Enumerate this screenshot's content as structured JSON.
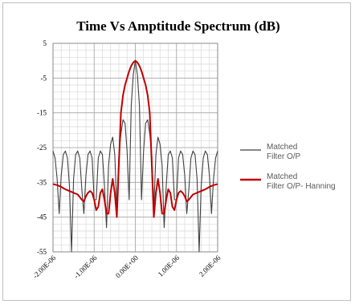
{
  "chart_data": {
    "type": "line",
    "title": "Time Vs Amptitude Spectrum  (dB)",
    "xlabel": "",
    "ylabel": "",
    "xlim": [
      -2e-06,
      2e-06
    ],
    "ylim": [
      -55,
      5
    ],
    "x_tick_values": [
      -2e-06,
      -1e-06,
      0,
      1e-06,
      2e-06
    ],
    "x_tick_labels": [
      "-2.00E-06",
      "-1.00E-06",
      "0.00E+00",
      "1.00E-06",
      "2.00E-06"
    ],
    "y_tick_values": [
      5,
      -5,
      -15,
      -25,
      -35,
      -45,
      -55
    ],
    "y_tick_labels": [
      "5",
      "-5",
      "-15",
      "-25",
      "-35",
      "-45",
      "-55"
    ],
    "grid": true,
    "legend_position": "right",
    "series": [
      {
        "name_lines": [
          "Matched",
          "Filter O/P"
        ],
        "color": "#404040",
        "x": [
          -2e-06,
          -1.95e-06,
          -1.9e-06,
          -1.85e-06,
          -1.8e-06,
          -1.75e-06,
          -1.7e-06,
          -1.65e-06,
          -1.6e-06,
          -1.55e-06,
          -1.5e-06,
          -1.45e-06,
          -1.4e-06,
          -1.35e-06,
          -1.3e-06,
          -1.25e-06,
          -1.2e-06,
          -1.15e-06,
          -1.1e-06,
          -1.05e-06,
          -1e-06,
          -9.5e-07,
          -9e-07,
          -8.5e-07,
          -8e-07,
          -7.5e-07,
          -7e-07,
          -6.5e-07,
          -6e-07,
          -5.5e-07,
          -5e-07,
          -4.5e-07,
          -4e-07,
          -3.5e-07,
          -3e-07,
          -2.5e-07,
          -2e-07,
          -1.5e-07,
          -1e-07,
          -5e-08,
          0,
          5e-08,
          1e-07,
          1.5e-07,
          2e-07,
          2.5e-07,
          3e-07,
          3.5e-07,
          4e-07,
          4.5e-07,
          5e-07,
          5.5e-07,
          6e-07,
          6.5e-07,
          7e-07,
          7.5e-07,
          8e-07,
          8.5e-07,
          9e-07,
          9.5e-07,
          1e-06,
          1.05e-06,
          1.1e-06,
          1.15e-06,
          1.2e-06,
          1.25e-06,
          1.3e-06,
          1.35e-06,
          1.4e-06,
          1.45e-06,
          1.5e-06,
          1.55e-06,
          1.6e-06,
          1.65e-06,
          1.7e-06,
          1.75e-06,
          1.8e-06,
          1.85e-06,
          1.9e-06,
          1.95e-06,
          2e-06
        ],
        "y": [
          -26,
          -28,
          -34,
          -44,
          -33,
          -27,
          -26,
          -28,
          -36,
          -55,
          -34,
          -27,
          -26,
          -28,
          -37,
          -44,
          -33,
          -27,
          -26,
          -28,
          -40,
          -40,
          -28,
          -26,
          -27,
          -36,
          -48,
          -30,
          -24,
          -22,
          -27,
          -42,
          -27,
          -21,
          -17,
          -18,
          -26,
          -40,
          -13,
          -4,
          0,
          -4,
          -13,
          -40,
          -26,
          -18,
          -17,
          -21,
          -27,
          -42,
          -27,
          -22,
          -24,
          -30,
          -48,
          -36,
          -27,
          -26,
          -28,
          -40,
          -40,
          -28,
          -26,
          -27,
          -33,
          -44,
          -37,
          -28,
          -26,
          -27,
          -34,
          -55,
          -36,
          -28,
          -26,
          -27,
          -33,
          -44,
          -34,
          -28,
          -26
        ]
      },
      {
        "name_lines": [
          "Matched",
          "Filter O/P- Hanning"
        ],
        "color": "#c00000",
        "x": [
          -2e-06,
          -1.9e-06,
          -1.8e-06,
          -1.7e-06,
          -1.6e-06,
          -1.5e-06,
          -1.4e-06,
          -1.3e-06,
          -1.25e-06,
          -1.2e-06,
          -1.15e-06,
          -1.1e-06,
          -1.05e-06,
          -1e-06,
          -9.5e-07,
          -9e-07,
          -8.5e-07,
          -8e-07,
          -7.5e-07,
          -7e-07,
          -6.5e-07,
          -6e-07,
          -5.5e-07,
          -5e-07,
          -4.5e-07,
          -4e-07,
          -3.5e-07,
          -3e-07,
          -2.5e-07,
          -2e-07,
          -1.5e-07,
          -1e-07,
          -5e-08,
          0,
          5e-08,
          1e-07,
          1.5e-07,
          2e-07,
          2.5e-07,
          3e-07,
          3.5e-07,
          4e-07,
          4.5e-07,
          5e-07,
          5.5e-07,
          6e-07,
          6.5e-07,
          7e-07,
          7.5e-07,
          8e-07,
          8.5e-07,
          9e-07,
          9.5e-07,
          1e-06,
          1.05e-06,
          1.1e-06,
          1.15e-06,
          1.2e-06,
          1.25e-06,
          1.3e-06,
          1.4e-06,
          1.5e-06,
          1.6e-06,
          1.7e-06,
          1.8e-06,
          1.9e-06,
          2e-06
        ],
        "y": [
          -35.5,
          -35.8,
          -36.3,
          -37,
          -37.5,
          -38,
          -38.5,
          -40,
          -40.5,
          -39,
          -38,
          -37.5,
          -38,
          -40,
          -43,
          -42,
          -38,
          -37,
          -40,
          -44,
          -44,
          -38,
          -34,
          -38,
          -45,
          -30,
          -15,
          -10,
          -7,
          -5,
          -3,
          -1.5,
          -0.5,
          0,
          -0.5,
          -1.5,
          -3,
          -5,
          -7,
          -10,
          -15,
          -30,
          -45,
          -38,
          -34,
          -38,
          -44,
          -44,
          -40,
          -37,
          -38,
          -42,
          -43,
          -40,
          -38,
          -37.5,
          -38,
          -39,
          -40.5,
          -40,
          -38.5,
          -38,
          -37.5,
          -37,
          -36.3,
          -35.8,
          -35.5
        ]
      }
    ]
  }
}
